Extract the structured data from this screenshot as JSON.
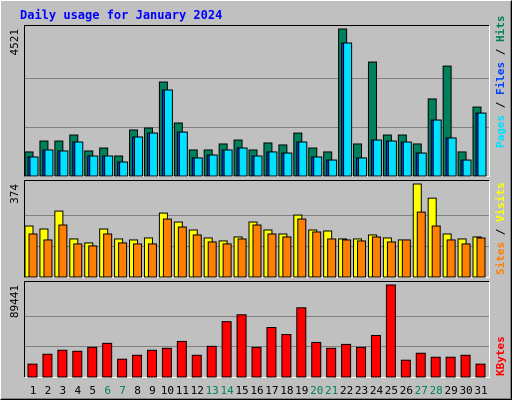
{
  "title": "Daily usage for January 2024",
  "legend_separator": " / ",
  "categories": [
    "1",
    "2",
    "3",
    "4",
    "5",
    "6",
    "7",
    "8",
    "9",
    "10",
    "11",
    "12",
    "13",
    "14",
    "15",
    "16",
    "17",
    "18",
    "19",
    "20",
    "21",
    "22",
    "23",
    "24",
    "25",
    "26",
    "27",
    "28",
    "29",
    "30",
    "31"
  ],
  "category_colors": [
    "#000000",
    "#000000",
    "#000000",
    "#000000",
    "#000000",
    "#00805c",
    "#00805c",
    "#000000",
    "#000000",
    "#000000",
    "#000000",
    "#000000",
    "#00805c",
    "#00805c",
    "#000000",
    "#000000",
    "#000000",
    "#000000",
    "#000000",
    "#00805c",
    "#00805c",
    "#000000",
    "#000000",
    "#000000",
    "#000000",
    "#000000",
    "#00805c",
    "#00805c",
    "#000000",
    "#000000",
    "#000000"
  ],
  "chart_data": [
    {
      "type": "bar",
      "ylim": [
        0,
        4521
      ],
      "yticks": [
        4521
      ],
      "series": [
        {
          "name": "Hits",
          "color": "#00805c",
          "values": [
            740,
            1075,
            1075,
            1260,
            770,
            860,
            615,
            1415,
            1475,
            2890,
            1630,
            800,
            800,
            985,
            1105,
            800,
            1015,
            955,
            1320,
            860,
            740,
            4521,
            985,
            3505,
            1260,
            1260,
            985,
            2370,
            3380,
            740,
            2120
          ]
        },
        {
          "name": "Files",
          "color": "#0040ff",
          "values": [
            585,
            800,
            770,
            1045,
            615,
            615,
            430,
            1200,
            1320,
            2645,
            1350,
            555,
            645,
            800,
            860,
            615,
            740,
            705,
            1045,
            585,
            490,
            4090,
            555,
            1105,
            1075,
            1045,
            705,
            1720,
            1170,
            490,
            1935
          ]
        },
        {
          "name": "Pages",
          "color": "#00e0ff",
          "values": [
            585,
            800,
            770,
            1045,
            615,
            615,
            430,
            1200,
            1320,
            2645,
            1350,
            555,
            645,
            800,
            860,
            615,
            740,
            705,
            1045,
            585,
            490,
            4090,
            555,
            1105,
            1075,
            1045,
            705,
            1720,
            1170,
            490,
            1935
          ]
        }
      ]
    },
    {
      "type": "bar",
      "ylim": [
        0,
        374
      ],
      "yticks": [
        374
      ],
      "series": [
        {
          "name": "Visits",
          "color": "#ffff00",
          "values": [
            205,
            193,
            265,
            153,
            137,
            193,
            153,
            149,
            157,
            257,
            221,
            189,
            157,
            145,
            161,
            221,
            189,
            173,
            249,
            189,
            185,
            153,
            153,
            169,
            157,
            149,
            374,
            317,
            173,
            153,
            161
          ]
        },
        {
          "name": "Sites",
          "color": "#ff8000",
          "values": [
            173,
            149,
            209,
            133,
            125,
            173,
            137,
            133,
            133,
            233,
            201,
            169,
            141,
            133,
            153,
            209,
            173,
            161,
            233,
            181,
            153,
            149,
            145,
            161,
            141,
            149,
            261,
            205,
            149,
            133,
            157
          ]
        }
      ]
    },
    {
      "type": "bar",
      "ylim": [
        0,
        89441
      ],
      "yticks": [
        89441
      ],
      "series": [
        {
          "name": "KBytes",
          "color": "#ff0000",
          "values": [
            12500,
            22100,
            26000,
            25000,
            28800,
            32700,
            17300,
            21100,
            26000,
            27900,
            34600,
            21100,
            29800,
            53800,
            60500,
            28800,
            48100,
            41300,
            67300,
            33600,
            27900,
            31700,
            28800,
            40400,
            89441,
            16300,
            23100,
            19200,
            19200,
            21100,
            12500
          ]
        }
      ]
    }
  ]
}
